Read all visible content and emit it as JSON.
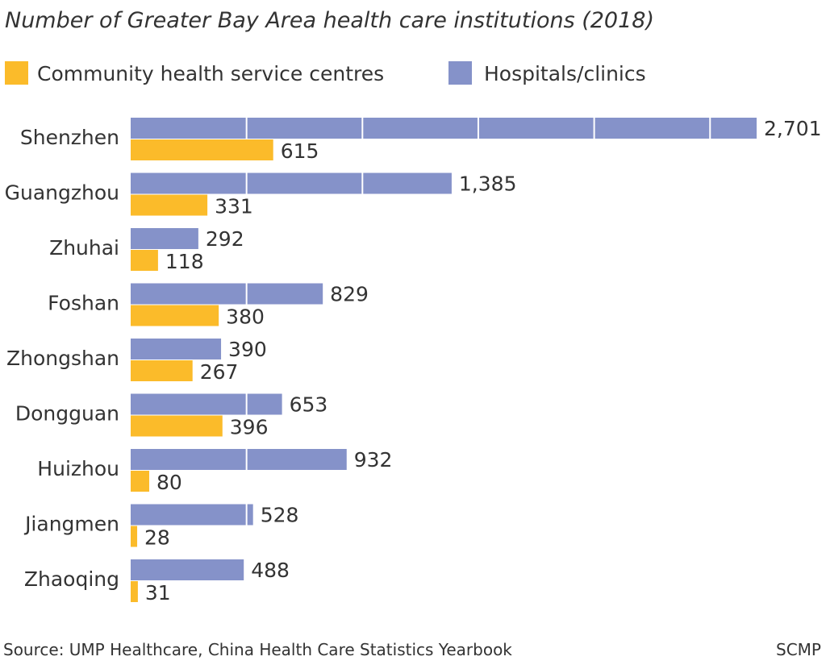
{
  "chart_data": {
    "type": "bar",
    "orientation": "horizontal",
    "title": "Number of Greater Bay Area health care institutions (2018)",
    "categories": [
      "Shenzhen",
      "Guangzhou",
      "Zhuhai",
      "Foshan",
      "Zhongshan",
      "Dongguan",
      "Huizhou",
      "Jiangmen",
      "Zhaoqing"
    ],
    "series": [
      {
        "name": "Hospitals/clinics",
        "color": "#8592c9",
        "values": [
          2701,
          1385,
          292,
          829,
          390,
          653,
          932,
          528,
          488
        ],
        "labels": [
          "2,701",
          "1,385",
          "292",
          "829",
          "390",
          "653",
          "932",
          "528",
          "488"
        ]
      },
      {
        "name": "Community health service centres",
        "color": "#fbbb2a",
        "values": [
          615,
          331,
          118,
          380,
          267,
          396,
          80,
          28,
          31
        ],
        "labels": [
          "615",
          "331",
          "118",
          "380",
          "267",
          "396",
          "80",
          "28",
          "31"
        ]
      }
    ],
    "legend": [
      {
        "label": "Community health service centres",
        "color": "#fbbb2a"
      },
      {
        "label": "Hospitals/clinics",
        "color": "#8592c9"
      }
    ],
    "legend_position": "top",
    "gridline_step": 500,
    "xlim": [
      0,
      2701
    ],
    "source": "Source: UMP Healthcare, China Health Care Statistics Yearbook",
    "credit": "SCMP"
  }
}
